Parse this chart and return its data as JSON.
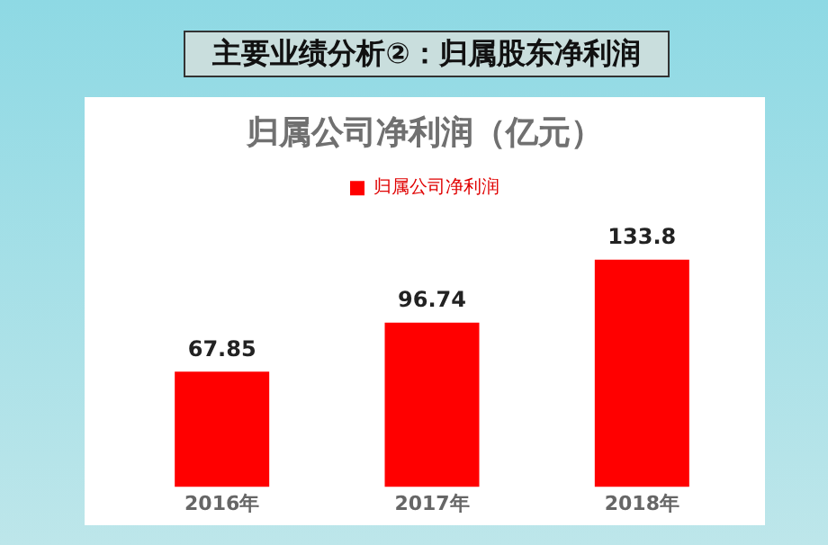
{
  "chart_data": {
    "type": "bar",
    "title": "主要业绩分析②：归属股东净利润",
    "subtitle": "归属公司净利润（亿元）",
    "categories": [
      "2016年",
      "2017年",
      "2018年"
    ],
    "series": [
      {
        "name": "归属公司净利润",
        "color": "#ff0000",
        "values": [
          67.85,
          96.74,
          133.8
        ]
      }
    ],
    "data_labels": true,
    "legend": "top",
    "grid": false,
    "relative": false
  }
}
